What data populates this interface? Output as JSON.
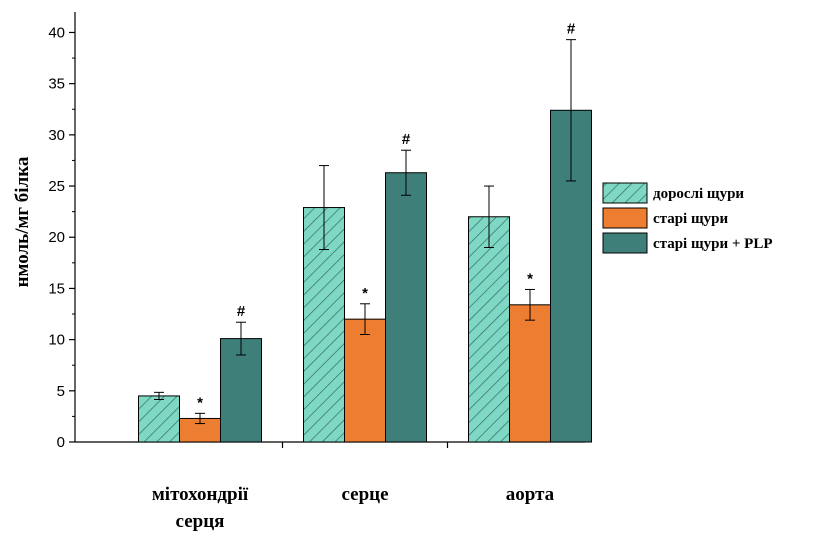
{
  "chart_data": {
    "type": "bar",
    "title": "",
    "xlabel": "",
    "ylabel": "нмоль/мг білка",
    "ylim": [
      0,
      42
    ],
    "yticks": [
      0,
      5,
      10,
      15,
      20,
      25,
      30,
      35,
      40
    ],
    "categories": [
      [
        "мітохондрії",
        "серця"
      ],
      [
        "серце"
      ],
      [
        "аорта"
      ]
    ],
    "legend_position": "right",
    "grid": false,
    "series": [
      {
        "name": "дорослі щури",
        "color": "#7fd8c4",
        "pattern": "hatched",
        "values": [
          4.5,
          22.9,
          22.0
        ],
        "errors": [
          0.35,
          4.1,
          3.0
        ],
        "annotations": [
          "",
          "",
          ""
        ]
      },
      {
        "name": "старі щури",
        "color": "#ed7d31",
        "pattern": "solid",
        "values": [
          2.3,
          12.0,
          13.4
        ],
        "errors": [
          0.5,
          1.5,
          1.5
        ],
        "annotations": [
          "*",
          "*",
          "*"
        ]
      },
      {
        "name": "старі щури + PLP",
        "color": "#3e7f7a",
        "pattern": "solid",
        "values": [
          10.1,
          26.3,
          32.4
        ],
        "errors": [
          1.6,
          2.2,
          6.9
        ],
        "annotations": [
          "#",
          "#",
          "#"
        ]
      }
    ]
  }
}
